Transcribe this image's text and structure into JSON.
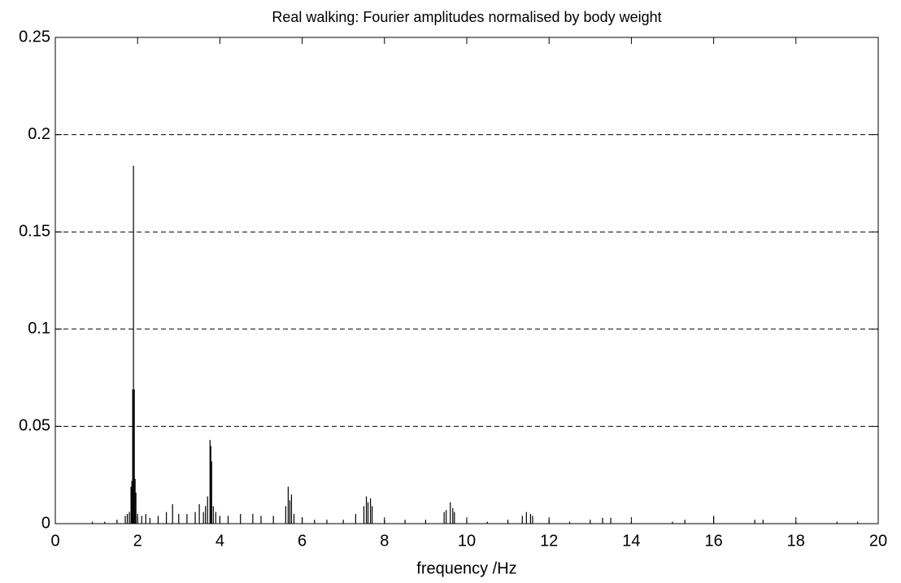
{
  "chart_data": {
    "type": "stem",
    "title": "Real walking: Fourier amplitudes normalised by body weight",
    "xlabel": "frequency /Hz",
    "x": [
      0.9,
      1.2,
      1.5,
      1.7,
      1.75,
      1.8,
      1.84,
      1.86,
      1.88,
      1.9,
      1.92,
      1.94,
      1.96,
      2.0,
      2.1,
      2.2,
      2.3,
      2.5,
      2.7,
      2.85,
      3.0,
      3.2,
      3.4,
      3.5,
      3.6,
      3.65,
      3.7,
      3.76,
      3.78,
      3.8,
      3.84,
      3.9,
      4.0,
      4.2,
      4.5,
      4.8,
      5.0,
      5.3,
      5.6,
      5.66,
      5.7,
      5.74,
      5.8,
      6.0,
      6.3,
      6.6,
      7.0,
      7.3,
      7.5,
      7.56,
      7.6,
      7.66,
      7.7,
      8.0,
      8.5,
      9.0,
      9.45,
      9.5,
      9.6,
      9.66,
      9.7,
      10.0,
      10.5,
      11.0,
      11.35,
      11.45,
      11.55,
      11.6,
      12.0,
      12.5,
      13.0,
      13.3,
      13.5,
      14.0,
      15.0,
      15.3,
      16.0,
      17.0,
      17.2,
      18.0,
      19.0,
      19.5
    ],
    "values": [
      0.001,
      0.001,
      0.002,
      0.004,
      0.005,
      0.006,
      0.019,
      0.022,
      0.069,
      0.184,
      0.069,
      0.023,
      0.016,
      0.005,
      0.004,
      0.005,
      0.003,
      0.004,
      0.006,
      0.01,
      0.005,
      0.005,
      0.006,
      0.01,
      0.006,
      0.009,
      0.014,
      0.043,
      0.04,
      0.032,
      0.009,
      0.006,
      0.004,
      0.004,
      0.005,
      0.005,
      0.004,
      0.004,
      0.009,
      0.019,
      0.012,
      0.015,
      0.005,
      0.003,
      0.002,
      0.002,
      0.002,
      0.005,
      0.009,
      0.014,
      0.011,
      0.013,
      0.009,
      0.002,
      0.002,
      0.002,
      0.006,
      0.007,
      0.011,
      0.008,
      0.006,
      0.002,
      0.001,
      0.002,
      0.004,
      0.006,
      0.005,
      0.004,
      0.002,
      0.001,
      0.002,
      0.003,
      0.003,
      0.001,
      0.001,
      0.002,
      0.004,
      0.002,
      0.002,
      0.001,
      0.001,
      0.001
    ],
    "color": "#000000",
    "xlim": [
      0,
      20
    ],
    "xticks": [
      0,
      2,
      4,
      6,
      8,
      10,
      12,
      14,
      16,
      18,
      20
    ],
    "ylim": [
      0,
      0.25
    ],
    "yticks": [
      0,
      0.05,
      0.1,
      0.15,
      0.2,
      0.25
    ],
    "grid": true
  }
}
